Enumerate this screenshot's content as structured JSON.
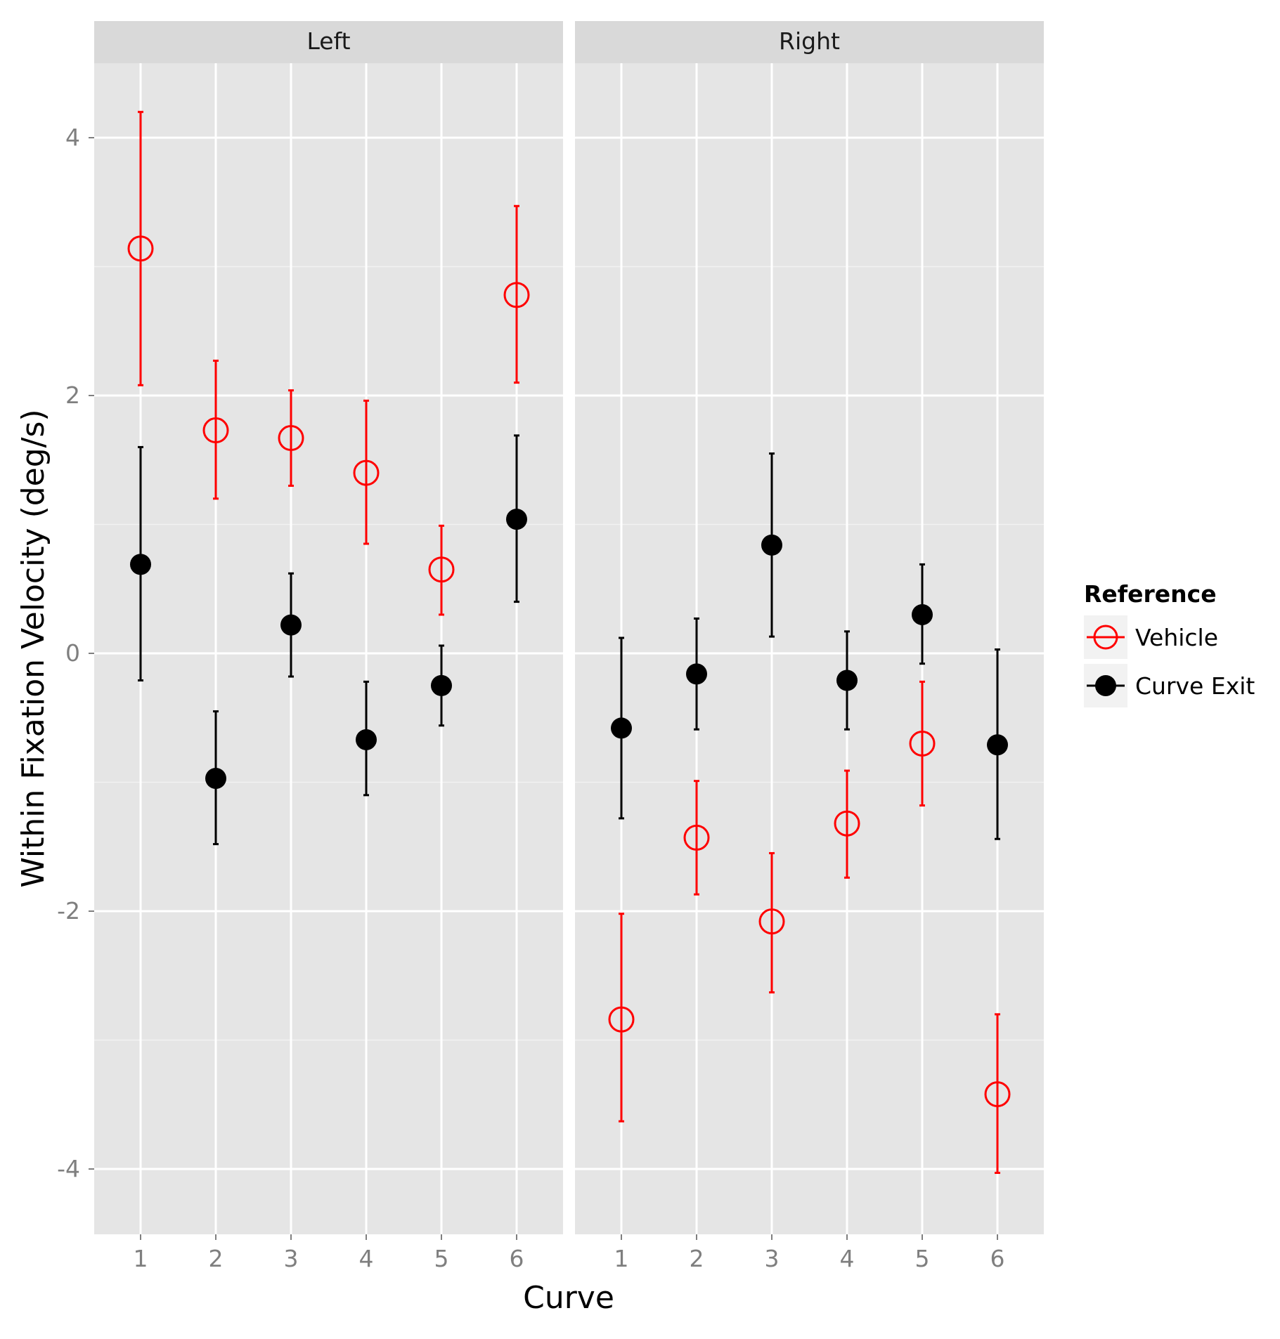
{
  "chart_data": {
    "type": "scatter",
    "subtype": "point-errorbar",
    "xlabel": "Curve",
    "ylabel": "Within Fixation Velocity (deg/s)",
    "ylim": [
      -4.45,
      4.5
    ],
    "yticks": [
      -4,
      -2,
      0,
      2,
      4
    ],
    "ytick_labels": [
      "-4",
      "-2",
      "0",
      "2",
      "4"
    ],
    "categories": [
      "1",
      "2",
      "3",
      "4",
      "5",
      "6"
    ],
    "grid": true,
    "legend": {
      "title": "Reference",
      "position": "right",
      "entries": [
        "Vehicle",
        "Curve Exit"
      ]
    },
    "series_styles": {
      "Vehicle": {
        "color": "#ff0000",
        "marker": "open-circle"
      },
      "Curve Exit": {
        "color": "#000000",
        "marker": "filled-circle"
      }
    },
    "panels": [
      {
        "label": "Left",
        "series": [
          {
            "name": "Vehicle",
            "mean": [
              3.14,
              1.73,
              1.67,
              1.4,
              0.65,
              2.78
            ],
            "lower": [
              2.08,
              1.2,
              1.3,
              0.85,
              0.3,
              2.1
            ],
            "upper": [
              4.2,
              2.27,
              2.04,
              1.96,
              0.99,
              3.47
            ]
          },
          {
            "name": "Curve Exit",
            "mean": [
              0.69,
              -0.97,
              0.22,
              -0.67,
              -0.25,
              1.04
            ],
            "lower": [
              -0.21,
              -1.48,
              -0.18,
              -1.1,
              -0.56,
              0.4
            ],
            "upper": [
              1.6,
              -0.45,
              0.62,
              -0.22,
              0.06,
              1.69
            ]
          }
        ]
      },
      {
        "label": "Right",
        "series": [
          {
            "name": "Vehicle",
            "mean": [
              -2.84,
              -1.43,
              -2.08,
              -1.32,
              -0.7,
              -3.42
            ],
            "lower": [
              -3.63,
              -1.87,
              -2.63,
              -1.74,
              -1.18,
              -4.03
            ],
            "upper": [
              -2.02,
              -0.99,
              -1.55,
              -0.91,
              -0.22,
              -2.8
            ]
          },
          {
            "name": "Curve Exit",
            "mean": [
              -0.58,
              -0.16,
              0.84,
              -0.21,
              0.3,
              -0.71
            ],
            "lower": [
              -1.28,
              -0.59,
              0.13,
              -0.59,
              -0.08,
              -1.44
            ],
            "upper": [
              0.12,
              0.27,
              1.55,
              0.17,
              0.69,
              0.03
            ]
          }
        ]
      }
    ]
  }
}
